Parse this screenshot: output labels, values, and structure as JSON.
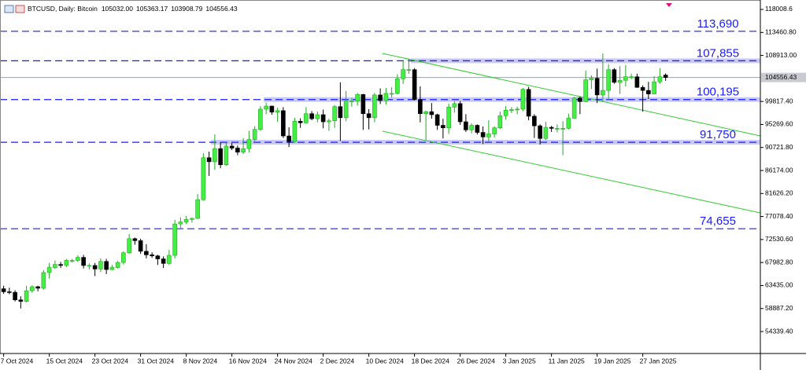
{
  "chart_data": {
    "type": "candlestick",
    "title": "BTCUSD, Daily:  Bitcoin",
    "header_values": [
      {
        "value": 105032,
        "label": "105032.00"
      },
      {
        "value": 105363.17,
        "label": "105363.17"
      },
      {
        "value": 103908.79,
        "label": "103908.79"
      },
      {
        "value": 104556.43,
        "label": "104556.43"
      }
    ],
    "categories": [
      "7 Oct 2024",
      null,
      null,
      null,
      null,
      null,
      null,
      null,
      "15 Oct 2024",
      null,
      null,
      null,
      null,
      null,
      null,
      null,
      "23 Oct 2024",
      null,
      null,
      null,
      null,
      null,
      null,
      null,
      "31 Oct 2024",
      null,
      null,
      null,
      null,
      null,
      null,
      null,
      "8 Nov 2024",
      null,
      null,
      null,
      null,
      null,
      null,
      null,
      "16 Nov 2024",
      null,
      null,
      null,
      null,
      null,
      null,
      null,
      "24 Nov 2024",
      null,
      null,
      null,
      null,
      null,
      null,
      null,
      "2 Dec 2024",
      null,
      null,
      null,
      null,
      null,
      null,
      null,
      "10 Dec 2024",
      null,
      null,
      null,
      null,
      null,
      null,
      null,
      "18 Dec 2024",
      null,
      null,
      null,
      null,
      null,
      null,
      null,
      "26 Dec 2024",
      null,
      null,
      null,
      null,
      null,
      null,
      null,
      "3 Jan 2025",
      null,
      null,
      null,
      null,
      null,
      null,
      null,
      "11 Jan 2025",
      null,
      null,
      null,
      null,
      null,
      null,
      null,
      "19 Jan 2025",
      null,
      null,
      null,
      null,
      null,
      null,
      null,
      "27 Jan 2025",
      null,
      null,
      null,
      null
    ],
    "open": [
      62800,
      62200,
      62100,
      60600,
      60300,
      62400,
      63200,
      62900,
      66000,
      67000,
      67600,
      67400,
      68400,
      68400,
      69000,
      67400,
      67400,
      66700,
      68200,
      66600,
      67000,
      68000,
      69900,
      72700,
      72300,
      70200,
      69500,
      69300,
      68700,
      67800,
      69400,
      75600,
      76000,
      76500,
      76700,
      80400,
      88700,
      87900,
      90500,
      87300,
      91000,
      90600,
      89800,
      90500,
      92300,
      94300,
      98300,
      98900,
      97700,
      98000,
      93000,
      91900,
      95900,
      95600,
      97400,
      96400,
      97200,
      95800,
      96000,
      98800,
      96600,
      99900,
      99900,
      101200,
      97400,
      96600,
      101100,
      100000,
      101400,
      101400,
      104300,
      106100,
      106100,
      100200,
      97400,
      97800,
      97200,
      95100,
      94600,
      98700,
      99400,
      95800,
      94200,
      95100,
      93700,
      92800,
      93400,
      94600,
      97000,
      98100,
      98200,
      98300,
      102200,
      96900,
      95000,
      92500,
      94700,
      94500,
      94500,
      94500,
      96500,
      100500,
      99800,
      104100,
      104400,
      101100,
      102000,
      106100,
      103600,
      104000,
      104700,
      104700,
      102600,
      102000,
      101300,
      103700,
      105032
    ],
    "high": [
      63400,
      63000,
      62500,
      61300,
      63400,
      63500,
      63400,
      66500,
      67900,
      68400,
      68100,
      68700,
      68700,
      69400,
      69500,
      67800,
      67900,
      68800,
      68700,
      67500,
      68300,
      70200,
      73600,
      72900,
      72700,
      71600,
      70000,
      69500,
      69200,
      70500,
      76400,
      76900,
      77200,
      76900,
      81500,
      89600,
      89900,
      93300,
      91800,
      91800,
      91600,
      91100,
      92600,
      94000,
      94900,
      98900,
      99600,
      99000,
      98600,
      98700,
      94700,
      96600,
      96500,
      98700,
      97900,
      97800,
      98200,
      96400,
      99100,
      103600,
      101900,
      100500,
      101500,
      101300,
      98300,
      101500,
      102400,
      102500,
      102600,
      105200,
      107800,
      108300,
      106400,
      102800,
      98000,
      99500,
      97400,
      96400,
      99400,
      99900,
      99900,
      97300,
      95500,
      95300,
      94900,
      96100,
      94900,
      97800,
      98900,
      98700,
      98800,
      102500,
      102700,
      97300,
      95300,
      95800,
      95000,
      95300,
      95900,
      97400,
      100700,
      100800,
      105900,
      105000,
      106300,
      109300,
      107200,
      106400,
      106800,
      107000,
      105300,
      105300,
      103000,
      103700,
      104800,
      106400,
      105363.17
    ],
    "low": [
      61800,
      61700,
      60300,
      58900,
      60100,
      62000,
      62300,
      62600,
      64800,
      66700,
      66900,
      67100,
      68000,
      68100,
      66800,
      66600,
      65300,
      66100,
      65700,
      66400,
      66800,
      67600,
      69700,
      71500,
      69700,
      68800,
      68900,
      67500,
      66900,
      67500,
      68800,
      74800,
      75600,
      75900,
      76600,
      80200,
      85100,
      86300,
      86600,
      87100,
      90200,
      89200,
      89400,
      89700,
      91600,
      94000,
      97300,
      97200,
      95800,
      92600,
      90800,
      91600,
      94600,
      95400,
      96100,
      95700,
      94500,
      94000,
      94600,
      92000,
      95900,
      98800,
      99000,
      94200,
      94300,
      95700,
      99300,
      99200,
      100600,
      101200,
      103300,
      105300,
      100000,
      95700,
      92200,
      96400,
      94200,
      92500,
      93400,
      97600,
      95200,
      93800,
      93500,
      93300,
      91400,
      91900,
      92700,
      94400,
      96200,
      97500,
      97300,
      97900,
      96100,
      92600,
      91300,
      92200,
      93800,
      93700,
      89200,
      94300,
      96500,
      97300,
      99700,
      102300,
      99500,
      99700,
      100100,
      103300,
      101300,
      102800,
      104200,
      102500,
      97800,
      100300,
      101300,
      103300,
      103908.79
    ],
    "close": [
      62200,
      62100,
      60600,
      60300,
      62400,
      63200,
      62900,
      66000,
      67000,
      67600,
      67400,
      68400,
      68400,
      69000,
      67400,
      67400,
      66700,
      68200,
      66600,
      67000,
      68000,
      69900,
      72700,
      72300,
      70200,
      69500,
      69300,
      68700,
      67800,
      69400,
      75600,
      76000,
      76500,
      76700,
      80400,
      88700,
      87900,
      90500,
      87300,
      91000,
      90600,
      89800,
      90500,
      92300,
      94300,
      98300,
      98900,
      97700,
      98000,
      93000,
      91900,
      95900,
      95600,
      97400,
      96400,
      97200,
      95800,
      96000,
      98800,
      96600,
      99900,
      99900,
      101200,
      97400,
      96600,
      101100,
      100000,
      101400,
      101400,
      104300,
      106100,
      106100,
      100200,
      97400,
      97800,
      97200,
      95100,
      94600,
      98700,
      99400,
      95800,
      94200,
      95100,
      93700,
      92800,
      93400,
      94600,
      97000,
      98100,
      98200,
      98300,
      102200,
      96900,
      95000,
      92500,
      94700,
      94500,
      94500,
      94500,
      96500,
      100500,
      99800,
      104100,
      104400,
      101100,
      102000,
      106100,
      103600,
      104000,
      104700,
      104700,
      102600,
      102000,
      101300,
      103700,
      104700,
      104556.43
    ],
    "up_color": "#44ee44",
    "down_color": "#000000",
    "last_price": 104556.43,
    "levels": [
      {
        "value": 113690,
        "label": "113,690"
      },
      {
        "value": 107855,
        "label": "107,855"
      },
      {
        "value": 100195,
        "label": "100,195"
      },
      {
        "value": 91750,
        "label": "91,750"
      },
      {
        "value": 74655,
        "label": "74,655"
      }
    ],
    "level_color": "#1a1aff",
    "ylim": [
      50000,
      119870
    ],
    "yticks": [
      {
        "value": 118008.6,
        "label": "118008.6"
      },
      {
        "value": 113460.8,
        "label": "113460.80"
      },
      {
        "value": 108913,
        "label": "108913.00"
      },
      {
        "value": 99817.4,
        "label": "99817.40"
      },
      {
        "value": 95269.6,
        "label": "95269.60"
      },
      {
        "value": 90721.8,
        "label": "90721.80"
      },
      {
        "value": 86174,
        "label": "86174.00"
      },
      {
        "value": 81626.2,
        "label": "81626.20"
      },
      {
        "value": 77078.4,
        "label": "77078.40"
      },
      {
        "value": 72530.6,
        "label": "72530.60"
      },
      {
        "value": 67982.8,
        "label": "67982.80"
      },
      {
        "value": 63435,
        "label": "63435.00"
      },
      {
        "value": 58887.2,
        "label": "58887.20"
      },
      {
        "value": 54339.4,
        "label": "54339.40"
      }
    ]
  }
}
